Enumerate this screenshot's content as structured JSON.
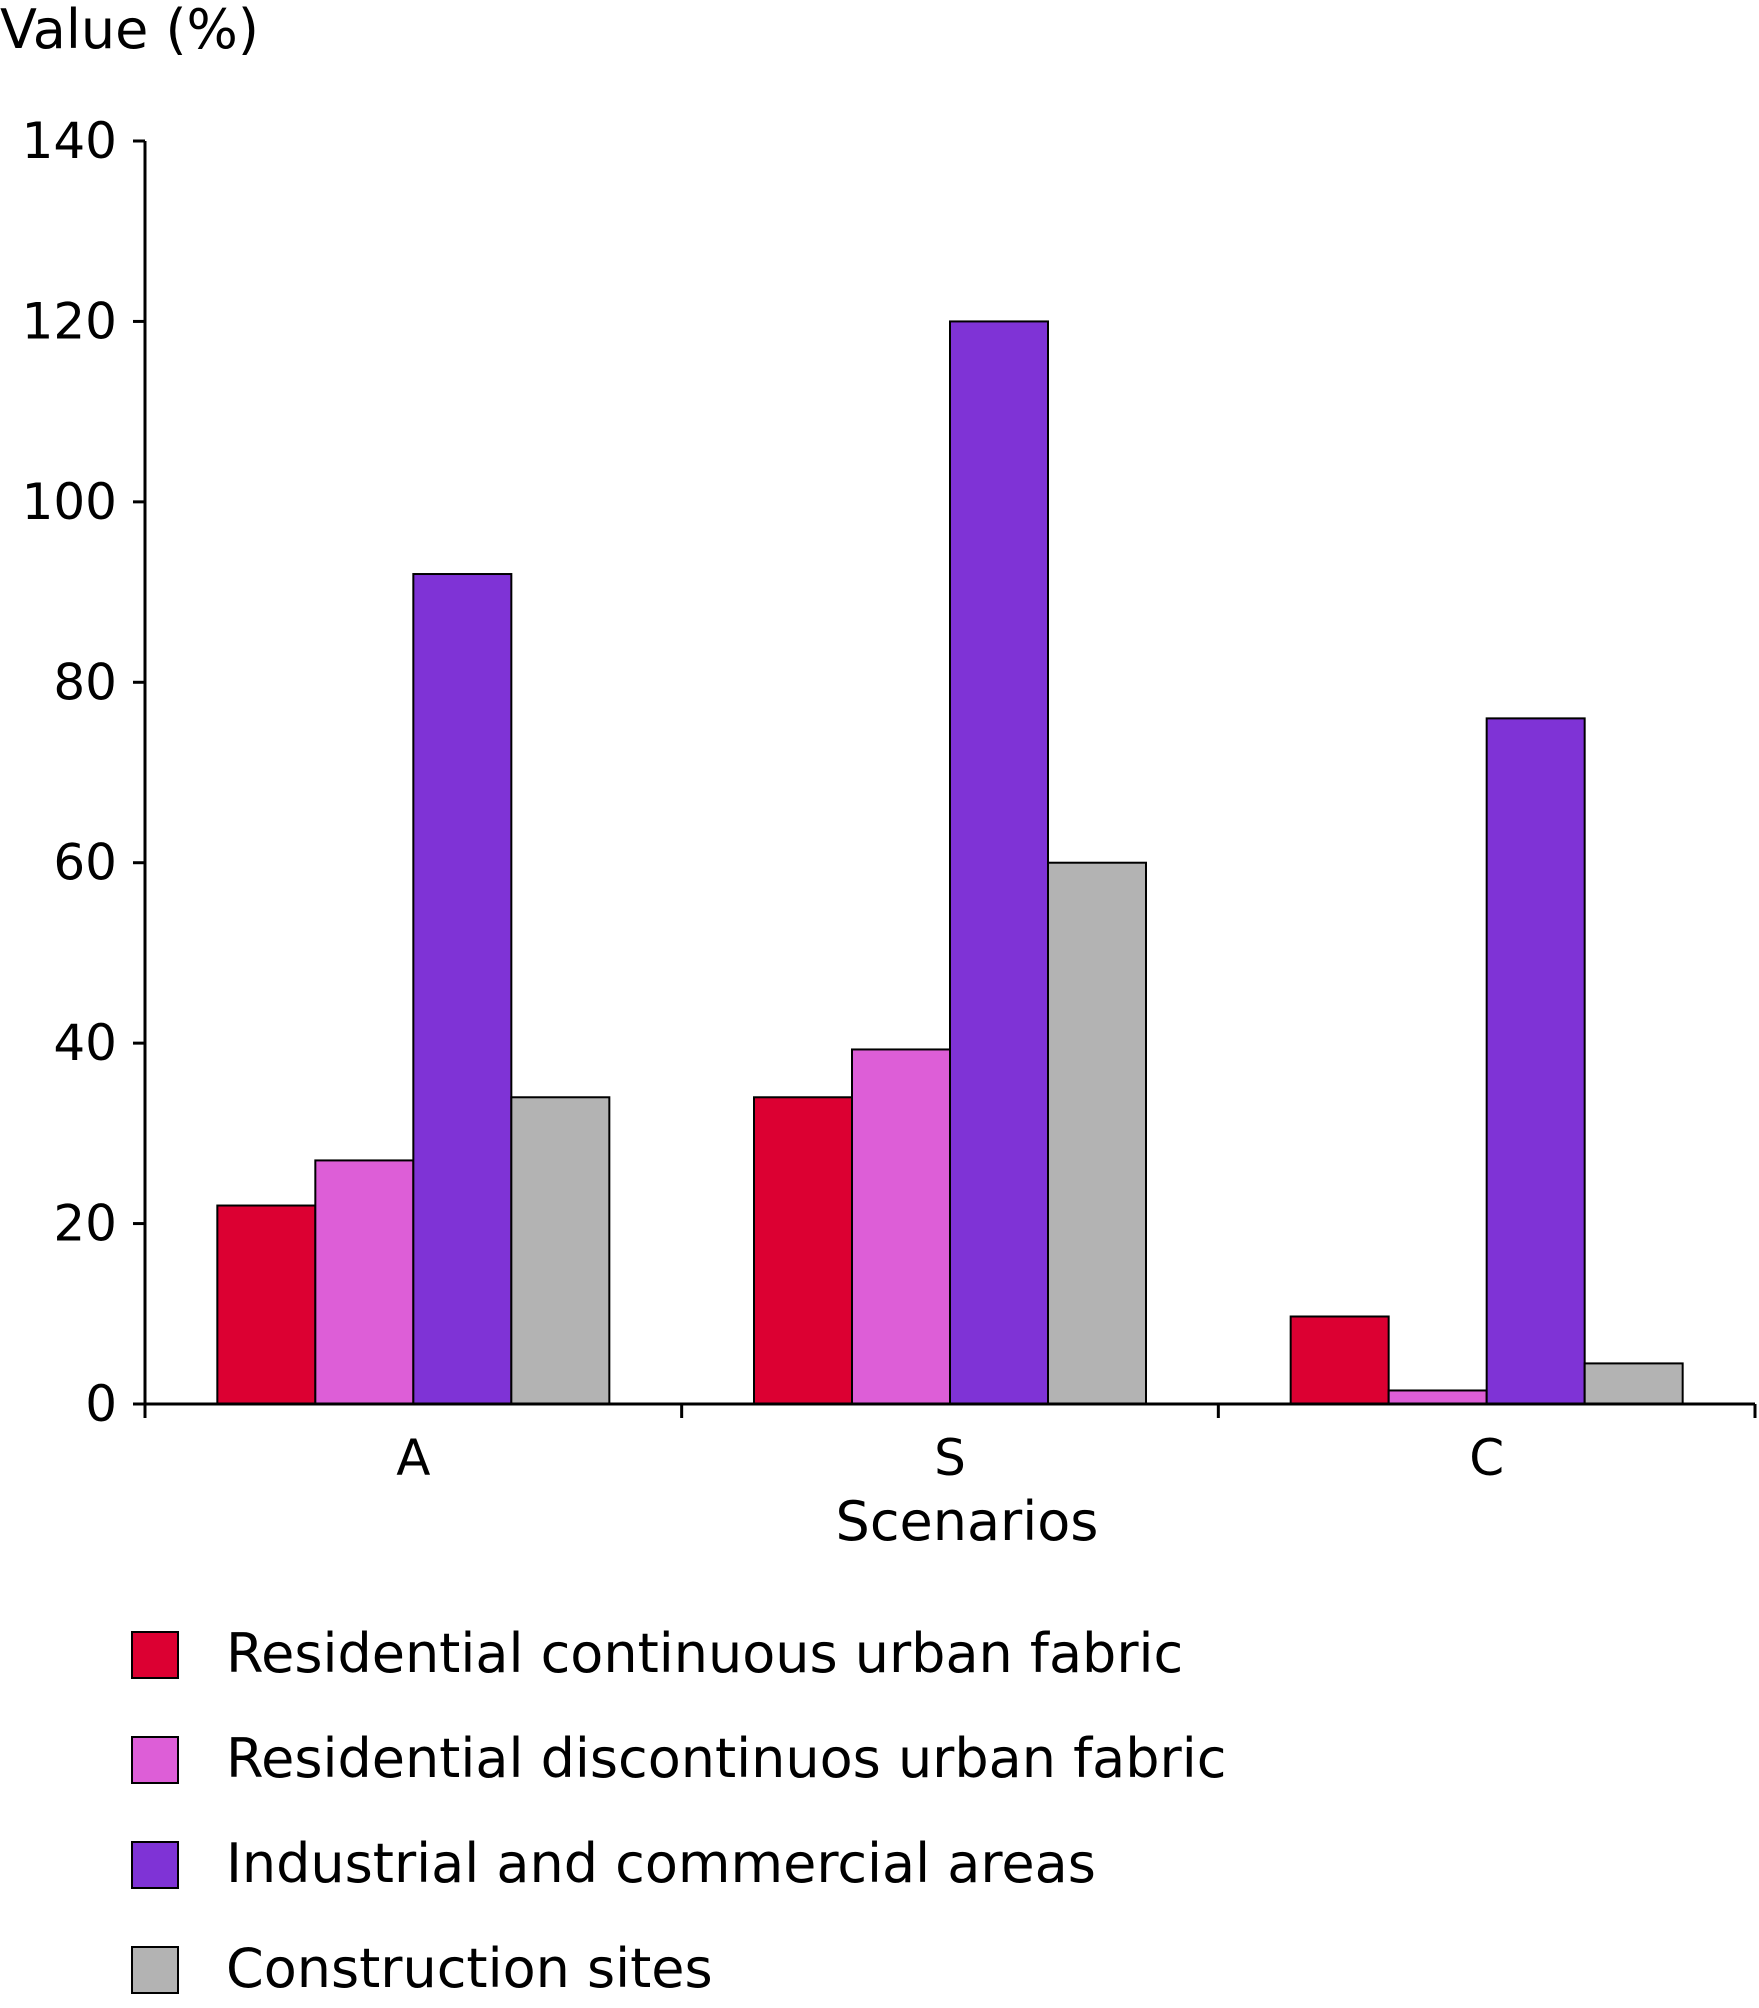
{
  "chart_data": {
    "type": "bar",
    "title": "",
    "ylabel": "Value (%)",
    "xlabel": "Scenarios",
    "ylim": [
      0,
      140
    ],
    "yticks": [
      0,
      20,
      40,
      60,
      80,
      100,
      120,
      140
    ],
    "categories": [
      "A",
      "S",
      "C"
    ],
    "grid": false,
    "legend_position": "bottom",
    "series": [
      {
        "name": "Residential continuous urban fabric",
        "color": "#dc0032",
        "values": [
          22,
          34,
          9.7
        ]
      },
      {
        "name": "Residential discontinuos urban fabric",
        "color": "#dd5ed7",
        "values": [
          27,
          39.3,
          1.5
        ]
      },
      {
        "name": "Industrial and commercial areas",
        "color": "#7f33d6",
        "values": [
          92,
          120,
          76
        ]
      },
      {
        "name": "Construction sites",
        "color": "#b3b3b3",
        "values": [
          34,
          60,
          4.5
        ]
      }
    ]
  }
}
